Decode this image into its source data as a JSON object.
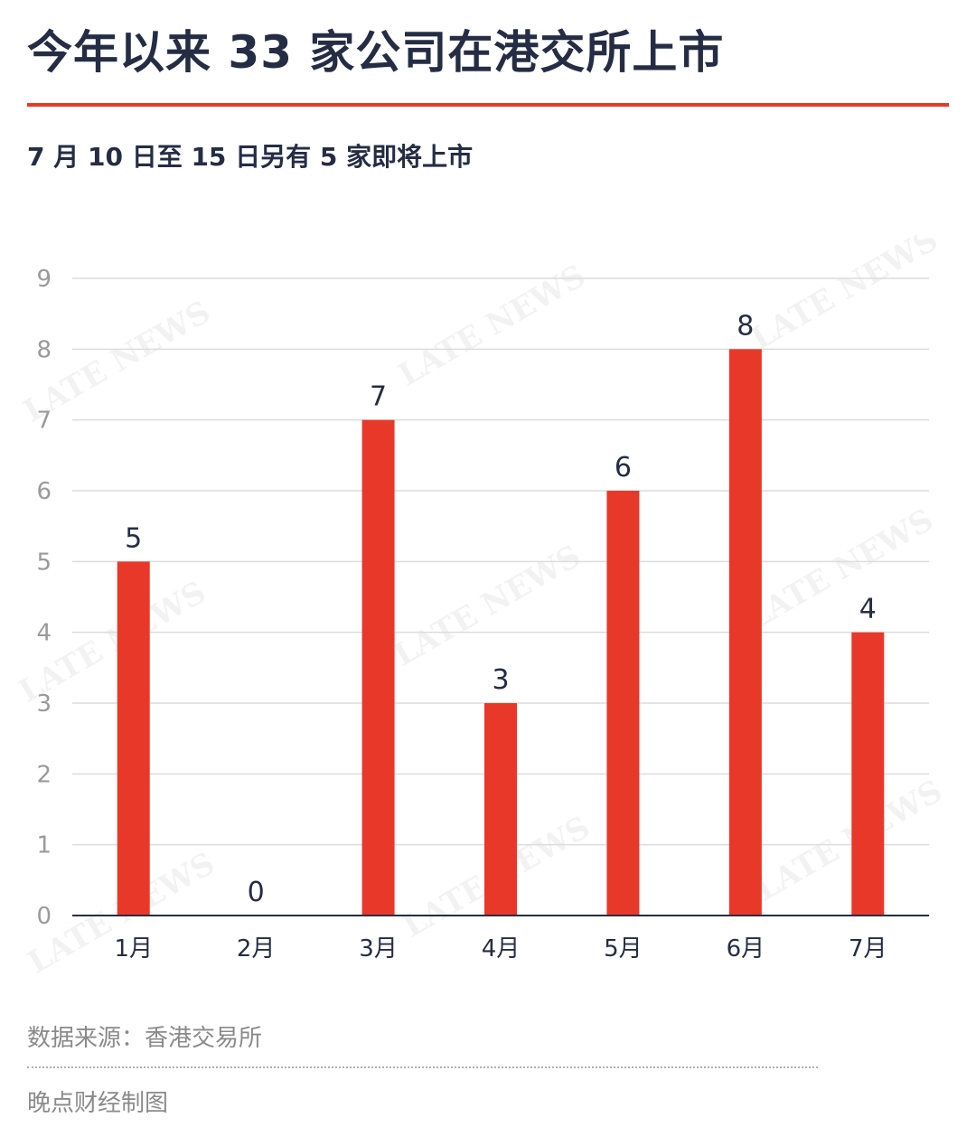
{
  "title": "今年以来 33 家公司在港交所上市",
  "subtitle": "7 月 10 日至 15 日另有 5 家即将上市",
  "source": "数据来源：香港交易所",
  "credit": "晚点财经制图",
  "watermark": "LATE NEWS",
  "colors": {
    "accent": "#e8382a",
    "bar": "#e8382a",
    "text": "#252d45",
    "grid": "#dcdcdc",
    "axis": "#252d45",
    "tick": "#9a9a9a"
  },
  "chart_data": {
    "type": "bar",
    "categories": [
      "1月",
      "2月",
      "3月",
      "4月",
      "5月",
      "6月",
      "7月"
    ],
    "values": [
      5,
      0,
      7,
      3,
      6,
      8,
      4
    ],
    "yticks": [
      0,
      1,
      2,
      3,
      4,
      5,
      6,
      7,
      8,
      9
    ],
    "ylim": [
      0,
      9
    ],
    "xlabel": "",
    "ylabel": "",
    "grid": true,
    "data_labels": true,
    "legend": "none"
  }
}
